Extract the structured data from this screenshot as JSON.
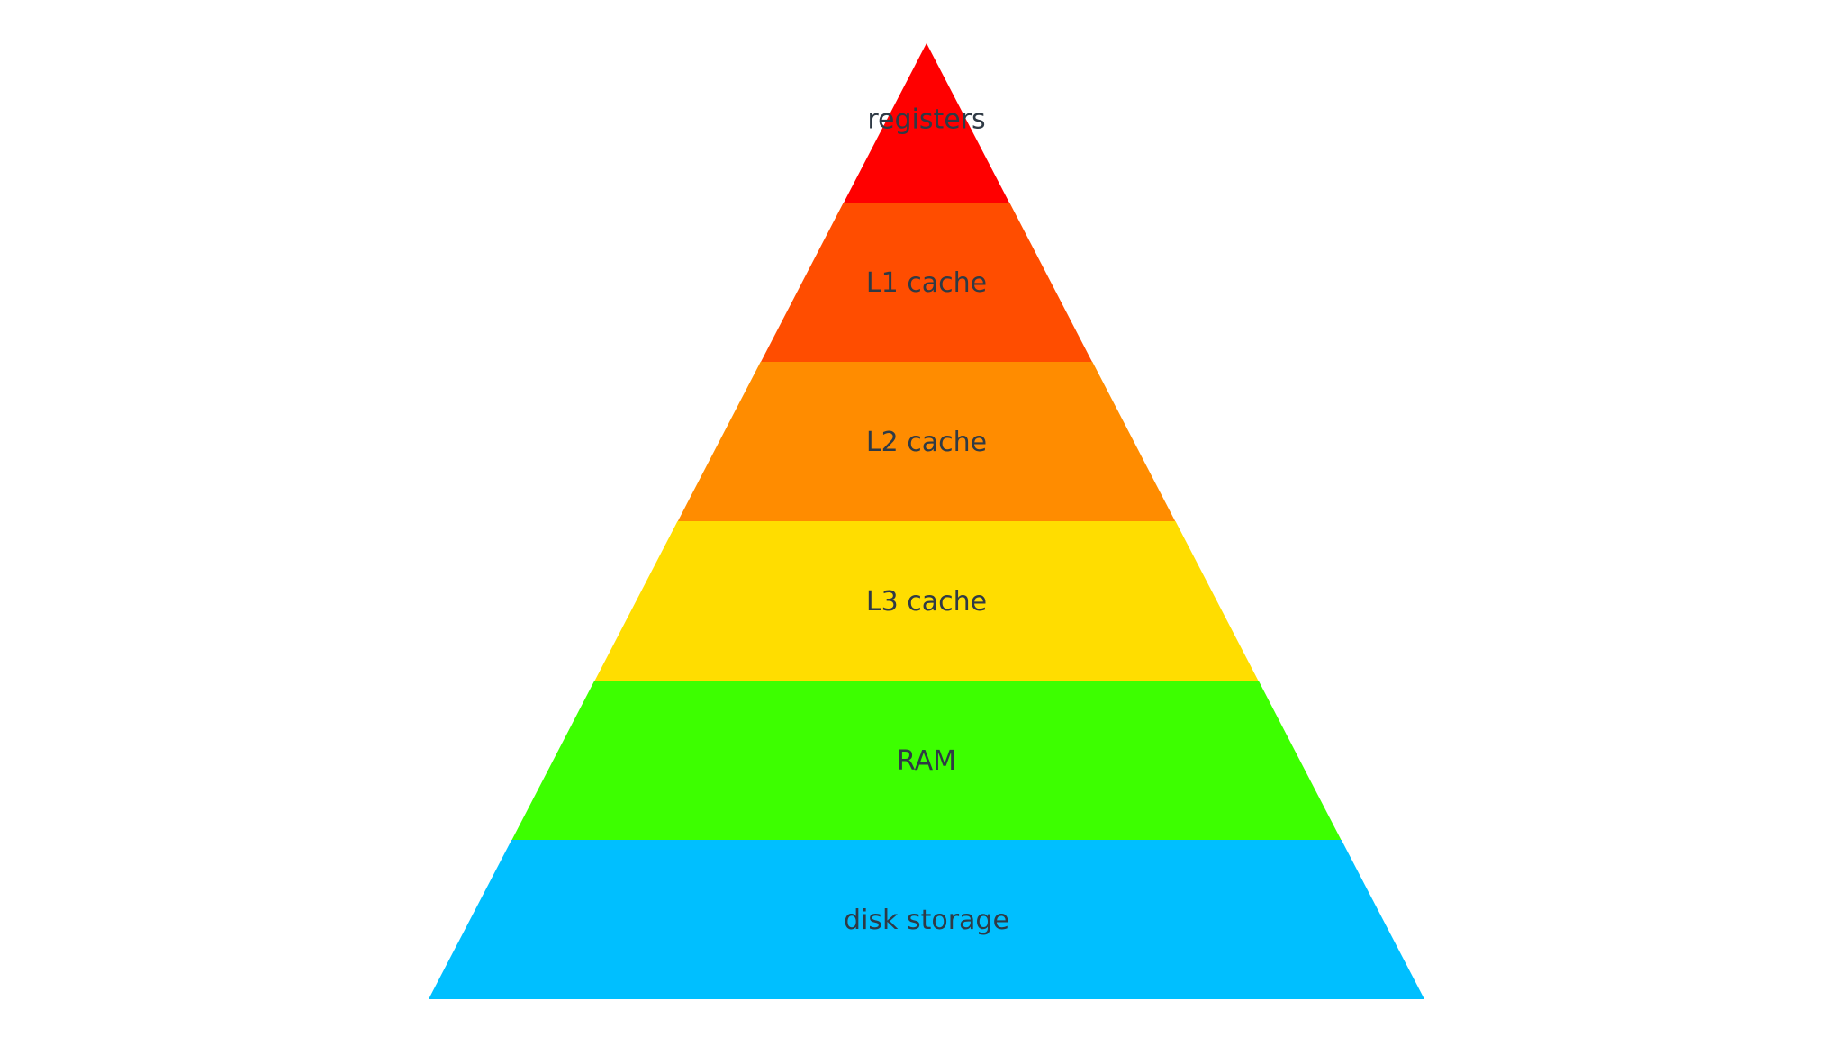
{
  "pyramid": {
    "tiers": [
      {
        "label": "registers",
        "color": "#ff0000"
      },
      {
        "label": "L1 cache",
        "color": "#ff4d00"
      },
      {
        "label": "L2 cache",
        "color": "#ff8c00"
      },
      {
        "label": "L3 cache",
        "color": "#ffdd00"
      },
      {
        "label": "RAM",
        "color": "#3dff00"
      },
      {
        "label": "disk storage",
        "color": "#00bfff"
      }
    ]
  }
}
